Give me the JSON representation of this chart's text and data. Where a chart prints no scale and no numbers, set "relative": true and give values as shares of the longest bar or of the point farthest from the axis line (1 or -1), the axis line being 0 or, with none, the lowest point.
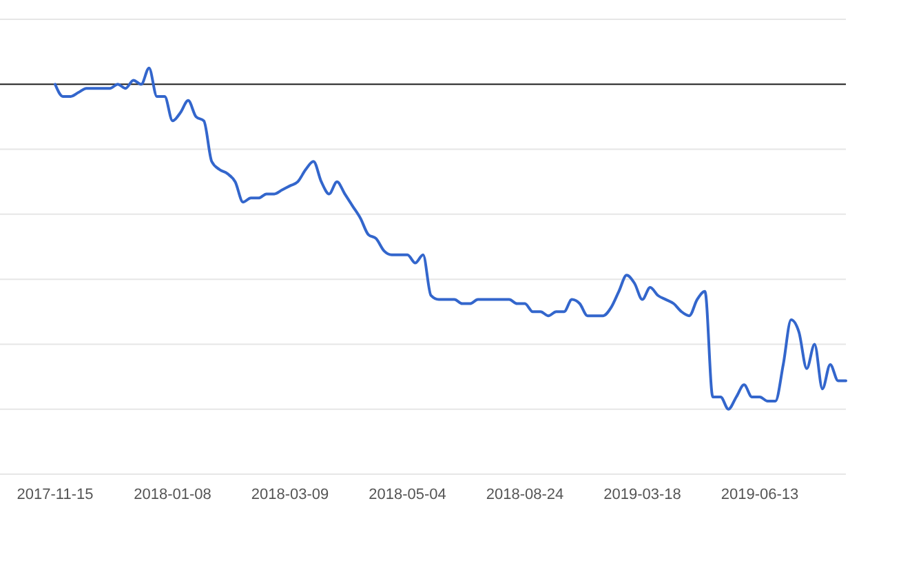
{
  "chart_data": {
    "type": "line",
    "relative": true,
    "grid": "y",
    "tick_labels": "x",
    "categories": [
      "2017-11-15",
      null,
      null,
      null,
      null,
      null,
      null,
      null,
      null,
      null,
      null,
      null,
      null,
      null,
      null,
      "2018-01-08",
      null,
      null,
      null,
      null,
      null,
      null,
      null,
      null,
      null,
      null,
      null,
      null,
      null,
      null,
      "2018-03-09",
      null,
      null,
      null,
      null,
      null,
      null,
      null,
      null,
      null,
      null,
      null,
      null,
      null,
      null,
      "2018-05-04",
      null,
      null,
      null,
      null,
      null,
      null,
      null,
      null,
      null,
      null,
      null,
      null,
      null,
      null,
      "2018-08-24",
      null,
      null,
      null,
      null,
      null,
      null,
      null,
      null,
      null,
      null,
      null,
      null,
      null,
      null,
      "2019-03-18",
      null,
      null,
      null,
      null,
      null,
      null,
      null,
      null,
      null,
      null,
      null,
      null,
      null,
      null,
      "2019-06-13",
      null,
      null,
      null,
      null,
      null,
      null,
      null,
      null,
      null,
      null,
      null
    ],
    "series": [
      {
        "color": "#3366cc",
        "values": [
          0.96,
          0.93,
          0.93,
          0.94,
          0.95,
          0.95,
          0.95,
          0.95,
          0.96,
          0.95,
          0.97,
          0.96,
          1,
          0.93,
          0.93,
          0.87,
          0.89,
          0.92,
          0.88,
          0.87,
          0.77,
          0.75,
          0.74,
          0.72,
          0.67,
          0.68,
          0.68,
          0.69,
          0.69,
          0.7,
          0.71,
          0.72,
          0.75,
          0.77,
          0.72,
          0.69,
          0.72,
          0.69,
          0.66,
          0.63,
          0.59,
          0.58,
          0.55,
          0.54,
          0.54,
          0.54,
          0.52,
          0.54,
          0.44,
          0.43,
          0.43,
          0.43,
          0.42,
          0.42,
          0.43,
          0.43,
          0.43,
          0.43,
          0.43,
          0.42,
          0.42,
          0.4,
          0.4,
          0.39,
          0.4,
          0.4,
          0.43,
          0.42,
          0.39,
          0.39,
          0.39,
          0.41,
          0.45,
          0.49,
          0.47,
          0.43,
          0.46,
          0.44,
          0.43,
          0.42,
          0.4,
          0.39,
          0.43,
          0.45,
          0.19,
          0.19,
          0.16,
          0.19,
          0.22,
          0.19,
          0.19,
          0.18,
          0.18,
          0.27,
          0.38,
          0.35,
          0.26,
          0.32,
          0.21,
          0.27,
          0.23,
          0.23
        ]
      }
    ],
    "ref_lines": [
      {
        "axis": "y",
        "value": 0.96,
        "color": "#222222"
      }
    ]
  }
}
